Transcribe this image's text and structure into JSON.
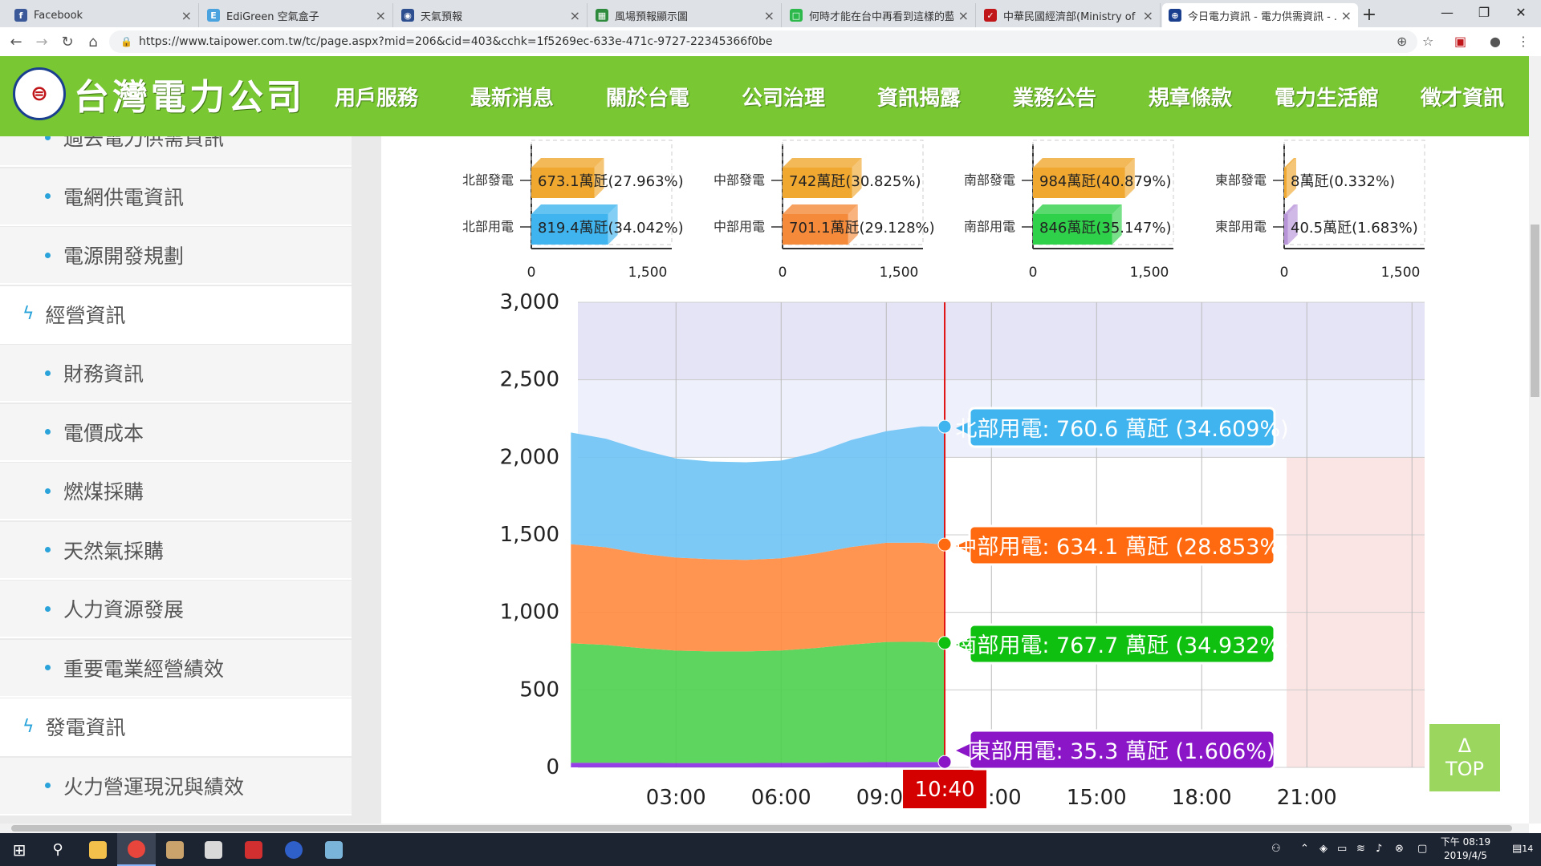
{
  "browser": {
    "tabs": [
      {
        "title": "Facebook",
        "icon": "facebook-icon",
        "color": "#3b5998",
        "glyph": "f"
      },
      {
        "title": "EdiGreen 空氣盒子",
        "icon": "edigreen-icon",
        "color": "#4aa3df",
        "glyph": "E"
      },
      {
        "title": "天氣預報",
        "icon": "weather-eye-icon",
        "color": "#2d4e8f",
        "glyph": "◉"
      },
      {
        "title": "風場預報顯示圖",
        "icon": "sheet-icon",
        "color": "#2e8b3e",
        "glyph": "▦"
      },
      {
        "title": "何時才能在台中再看到這樣的藍...",
        "icon": "line-icon",
        "color": "#2db84c",
        "glyph": "□"
      },
      {
        "title": "中華民國經濟部(Ministry of Econ...",
        "icon": "moea-icon",
        "color": "#c0161a",
        "glyph": "✓"
      },
      {
        "title": "今日電力資訊 - 電力供需資訊 - ...",
        "icon": "taipower-tab-icon",
        "color": "#1a3f8f",
        "glyph": "⊕"
      }
    ],
    "new_tab": "+",
    "url": "https://www.taipower.com.tw/tc/page.aspx?mid=206&cid=403&cchk=1f5269ec-633e-471c-9727-22345366f0be",
    "win_min": "—",
    "win_max": "❐",
    "win_close": "✕"
  },
  "site": {
    "logo_text": "台灣電力公司",
    "nav": [
      "用戶服務",
      "最新消息",
      "關於台電",
      "公司治理",
      "資訊揭露",
      "業務公告",
      "規章條款",
      "電力生活館",
      "徵才資訊"
    ]
  },
  "sidebar": {
    "items": [
      {
        "label": "過去電力供需資訊",
        "type": "sub"
      },
      {
        "label": "電網供電資訊",
        "type": "sub"
      },
      {
        "label": "電源開發規劃",
        "type": "sub"
      },
      {
        "label": "經營資訊",
        "type": "cat"
      },
      {
        "label": "財務資訊",
        "type": "sub"
      },
      {
        "label": "電價成本",
        "type": "sub"
      },
      {
        "label": "燃煤採購",
        "type": "sub"
      },
      {
        "label": "天然氣採購",
        "type": "sub"
      },
      {
        "label": "人力資源發展",
        "type": "sub"
      },
      {
        "label": "重要電業經營績效",
        "type": "sub"
      },
      {
        "label": "發電資訊",
        "type": "cat"
      },
      {
        "label": "火力營運現況與績效",
        "type": "sub"
      }
    ]
  },
  "chart_data": [
    {
      "type": "bar",
      "title": "北部",
      "categories": [
        "北部發電",
        "北部用電"
      ],
      "values": [
        673.1,
        819.4
      ],
      "labels": [
        "673.1萬瓩(27.963%)",
        "819.4萬瓩(34.042%)"
      ],
      "colors": [
        "#f0a830",
        "#3fb4ee"
      ],
      "xlim": [
        0,
        1500
      ],
      "xticks": [
        "0",
        "1,500"
      ]
    },
    {
      "type": "bar",
      "title": "中部",
      "categories": [
        "中部發電",
        "中部用電"
      ],
      "values": [
        742,
        701.1
      ],
      "labels": [
        "742萬瓩(30.825%)",
        "701.1萬瓩(29.128%)"
      ],
      "colors": [
        "#f0a830",
        "#f58a3a"
      ],
      "xlim": [
        0,
        1500
      ],
      "xticks": [
        "0",
        "1,500"
      ]
    },
    {
      "type": "bar",
      "title": "南部",
      "categories": [
        "南部發電",
        "南部用電"
      ],
      "values": [
        984,
        846
      ],
      "labels": [
        "984萬瓩(40.879%)",
        "846萬瓩(35.147%)"
      ],
      "colors": [
        "#f0a830",
        "#2fd04a"
      ],
      "xlim": [
        0,
        1500
      ],
      "xticks": [
        "0",
        "1,500"
      ]
    },
    {
      "type": "bar",
      "title": "東部",
      "categories": [
        "東部發電",
        "東部用電"
      ],
      "values": [
        8,
        40.5
      ],
      "labels": [
        "8萬瓩(0.332%)",
        "40.5萬瓩(1.683%)"
      ],
      "colors": [
        "#f0a830",
        "#b794d8"
      ],
      "xlim": [
        0,
        1500
      ],
      "xticks": [
        "0",
        "1,500"
      ]
    },
    {
      "type": "area",
      "stacked": true,
      "x": [
        "00:00",
        "01:00",
        "02:00",
        "03:00",
        "04:00",
        "05:00",
        "06:00",
        "07:00",
        "08:00",
        "09:00",
        "10:00",
        "10:40"
      ],
      "xticks": [
        "03:00",
        "06:00",
        "09:00",
        "12:00",
        "15:00",
        "18:00",
        "21:00"
      ],
      "ylim": [
        0,
        3000
      ],
      "yticks": [
        "0",
        "500",
        "1,000",
        "1,500",
        "2,000",
        "2,500",
        "3,000"
      ],
      "series": [
        {
          "name": "東部用電",
          "color": "#8a2be2",
          "values": [
            30,
            30,
            29,
            28,
            28,
            28,
            29,
            30,
            32,
            34,
            35,
            35.3
          ]
        },
        {
          "name": "南部用電",
          "color": "#4cd04c",
          "values": [
            770,
            760,
            740,
            725,
            720,
            720,
            725,
            740,
            760,
            775,
            775,
            767.7
          ]
        },
        {
          "name": "中部用電",
          "color": "#ff8a3d",
          "values": [
            640,
            630,
            610,
            600,
            595,
            590,
            595,
            610,
            630,
            640,
            640,
            634.1
          ]
        },
        {
          "name": "北部用電",
          "color": "#6ec3f5",
          "values": [
            720,
            700,
            670,
            640,
            630,
            630,
            630,
            650,
            690,
            720,
            750,
            760.6
          ]
        }
      ],
      "cursor": {
        "time": "10:40",
        "label": "10:40"
      },
      "tooltips": [
        {
          "text": "北部用電: 760.6 萬瓩 (34.609%)",
          "color": "#3fb4ee"
        },
        {
          "text": "中部用電: 634.1 萬瓩 (28.853%)",
          "color": "#ff6a10"
        },
        {
          "text": "南部用電: 767.7 萬瓩 (34.932%)",
          "color": "#10c010"
        },
        {
          "text": "東部用電: 35.3 萬瓩 (1.606%)",
          "color": "#8a16c8"
        }
      ]
    }
  ],
  "top_button": {
    "arrow": "Δ",
    "label": "TOP"
  },
  "taskbar": {
    "clock_time": "下午 08:19",
    "clock_date": "2019/4/5",
    "notifications": "14"
  }
}
